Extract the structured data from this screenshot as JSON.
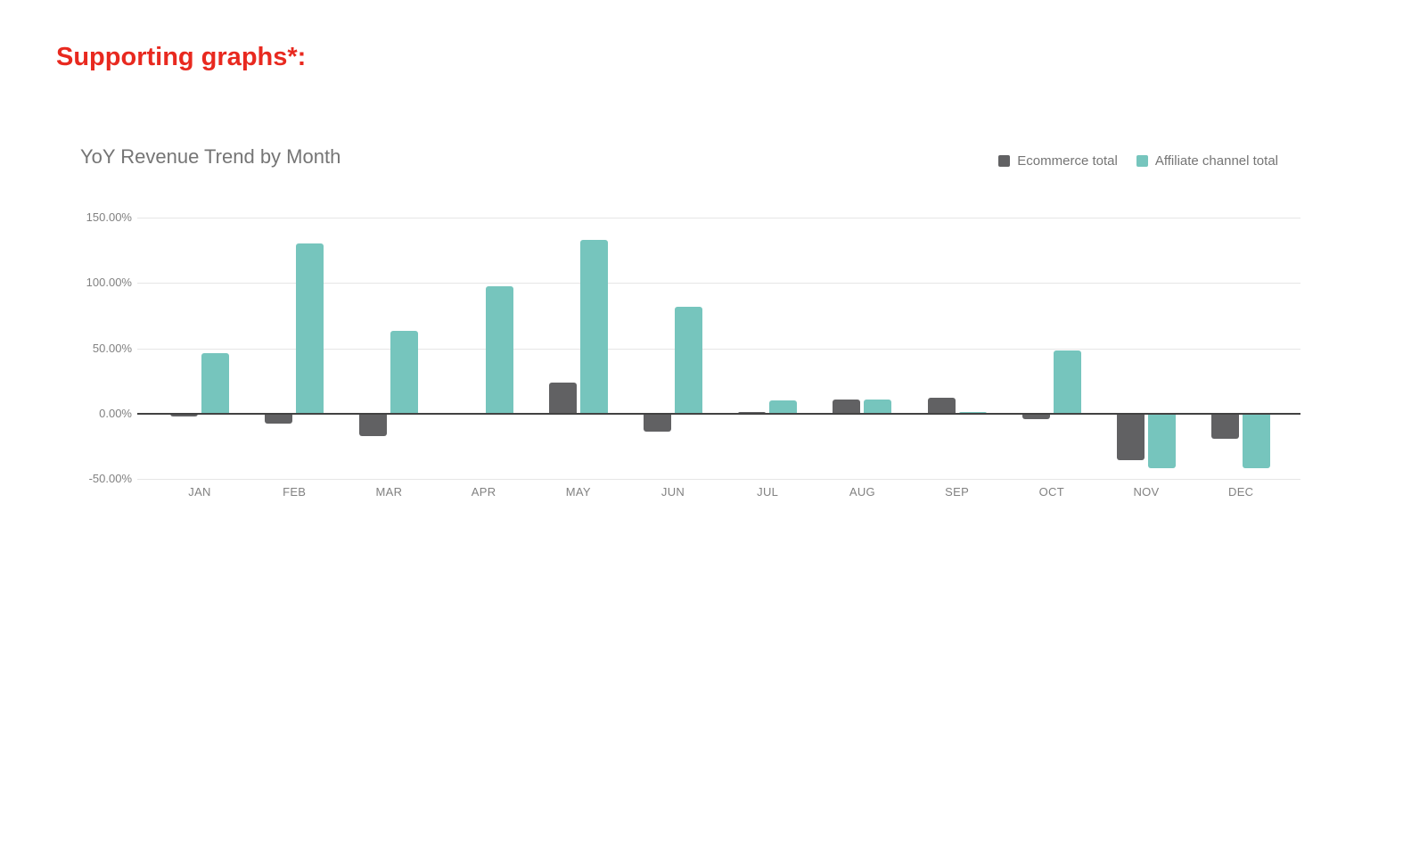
{
  "page": {
    "heading": "Supporting graphs*:",
    "heading_color": "#e8291f",
    "background": "#ffffff"
  },
  "chart": {
    "title": "YoY Revenue Trend by Month"
  },
  "chart_data": {
    "type": "bar",
    "title": "YoY Revenue Trend by Month",
    "value_format": "percent",
    "categories": [
      "JAN",
      "FEB",
      "MAR",
      "APR",
      "MAY",
      "JUN",
      "JUL",
      "AUG",
      "SEP",
      "OCT",
      "NOV",
      "DEC"
    ],
    "series": [
      {
        "name": "Ecommerce total",
        "color": "#616163",
        "values": [
          -2,
          -8,
          -17,
          0,
          24,
          -13.5,
          1.5,
          11,
          12,
          -4,
          -36,
          -19
        ]
      },
      {
        "name": "Affiliate channel total",
        "color": "#76c5bd",
        "values": [
          46,
          130,
          63,
          97.5,
          133,
          82,
          10,
          10.5,
          0.8,
          48,
          -41.5,
          -41.5
        ]
      }
    ],
    "xlabel": "",
    "ylabel": "",
    "ylim": [
      -50,
      150
    ],
    "yticks": [
      {
        "value": 150,
        "label": "150.00%"
      },
      {
        "value": 100,
        "label": "100.00%"
      },
      {
        "value": 50,
        "label": "50.00%"
      },
      {
        "value": 0,
        "label": "0.00%"
      },
      {
        "value": -50,
        "label": "-50.00%"
      }
    ],
    "grid": true,
    "grid_color": "#e6e6e6",
    "axis_color": "#424242",
    "tick_label_color": "#818181",
    "legend_position": "top-right"
  }
}
